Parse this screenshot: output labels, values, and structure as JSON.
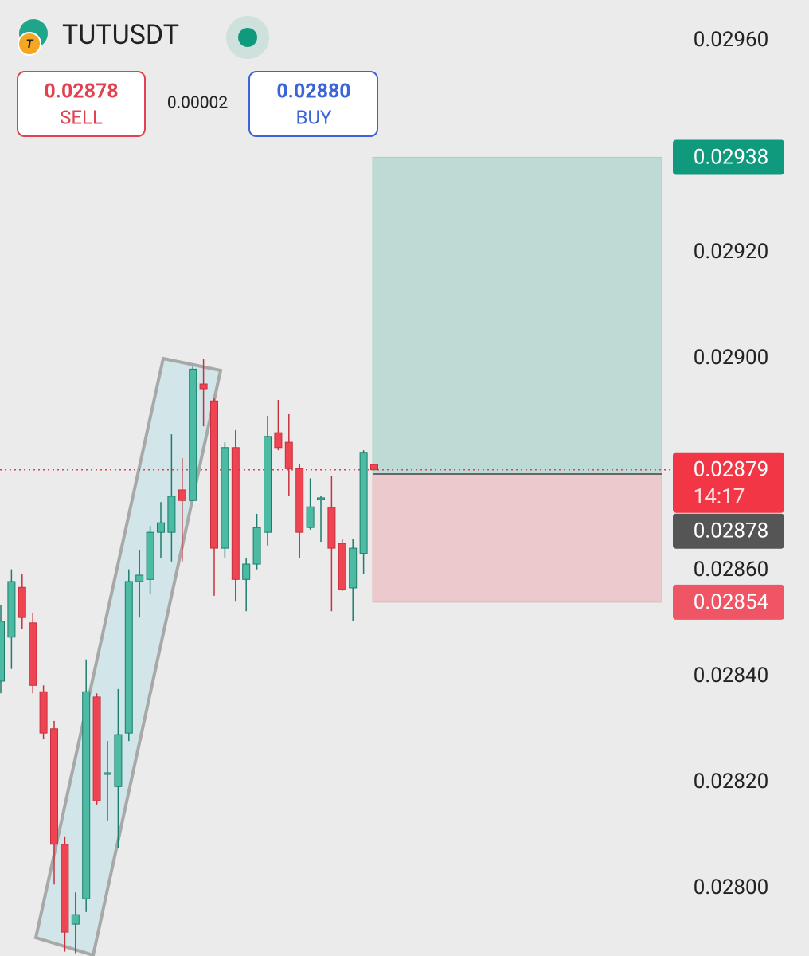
{
  "chart_data": {
    "type": "candlestick",
    "symbol": "TUTUSDT",
    "sell": {
      "price": "0.02878",
      "label": "SELL"
    },
    "spread": "0.00002",
    "buy": {
      "price": "0.02880",
      "label": "BUY"
    },
    "up_color": "#4dbba4",
    "down_color": "#ef4452",
    "open": [
      0.028391,
      0.028474,
      0.028568,
      0.028501,
      0.028371,
      0.028301,
      0.028083,
      0.027932,
      0.02798,
      0.028361,
      0.028215,
      0.028192,
      0.028293,
      0.028579,
      0.028583,
      0.028672,
      0.028672,
      0.028752,
      0.028732,
      0.028952,
      0.02892,
      0.028642,
      0.028832,
      0.028583,
      0.028612,
      0.028672,
      0.02886,
      0.028842,
      0.028792,
      0.028681,
      0.028734,
      0.028719,
      0.028651,
      0.028567,
      0.028632,
      0.0288
    ],
    "high": [
      0.028534,
      0.028602,
      0.028594,
      0.028519,
      0.028383,
      0.028316,
      0.028098,
      0.027992,
      0.028432,
      0.028368,
      0.028278,
      0.028376,
      0.028602,
      0.028639,
      0.028684,
      0.028729,
      0.028857,
      0.028812,
      0.028985,
      0.029,
      0.028925,
      0.028842,
      0.028865,
      0.028624,
      0.028707,
      0.028892,
      0.028922,
      0.028895,
      0.028801,
      0.028774,
      0.028741,
      0.028779,
      0.028659,
      0.028659,
      0.028827,
      0.0288
    ],
    "low": [
      0.028368,
      0.028414,
      0.028489,
      0.028368,
      0.028281,
      0.028007,
      0.02788,
      0.027877,
      0.027955,
      0.028158,
      0.028128,
      0.028075,
      0.028278,
      0.028511,
      0.028556,
      0.028624,
      0.028617,
      0.028617,
      0.028732,
      0.028872,
      0.028552,
      0.028624,
      0.028541,
      0.028523,
      0.028602,
      0.028647,
      0.028827,
      0.028741,
      0.028624,
      0.028677,
      0.028654,
      0.028523,
      0.028561,
      0.028504,
      0.028594,
      0.02879
    ],
    "close": [
      0.028504,
      0.028579,
      0.028511,
      0.028383,
      0.028293,
      0.028083,
      0.027917,
      0.02795,
      0.028371,
      0.028165,
      0.028218,
      0.02829,
      0.028579,
      0.028591,
      0.028672,
      0.02869,
      0.02874,
      0.028732,
      0.02898,
      0.028943,
      0.028642,
      0.028832,
      0.028583,
      0.028612,
      0.028681,
      0.028853,
      0.028832,
      0.028792,
      0.028672,
      0.02872,
      0.028737,
      0.028642,
      0.028564,
      0.028642,
      0.028823,
      0.02879
    ],
    "ylim": [
      0.027872,
      0.029677
    ],
    "yticks": [
      {
        "value": 0.0296,
        "label": "0.02960"
      },
      {
        "value": 0.0292,
        "label": "0.02920"
      },
      {
        "value": 0.029,
        "label": "0.02900"
      },
      {
        "value": 0.0286,
        "label": "0.02860"
      },
      {
        "value": 0.0284,
        "label": "0.02840"
      },
      {
        "value": 0.0282,
        "label": "0.02820"
      },
      {
        "value": 0.028,
        "label": "0.02800"
      }
    ],
    "position": {
      "take_profit": 0.02938,
      "entry": 0.028782,
      "stop_loss": 0.02854,
      "profit_color": "#bddad5",
      "loss_color": "#ecc9cd"
    },
    "price_tags": [
      {
        "value": 0.02938,
        "color": "#0f9a7e"
      },
      {
        "value": 0.02879,
        "countdown": "14:17",
        "color": "#f23645"
      },
      {
        "value": 0.02878,
        "color": "#555555"
      },
      {
        "value": 0.02854,
        "color": "#f05565"
      }
    ]
  }
}
